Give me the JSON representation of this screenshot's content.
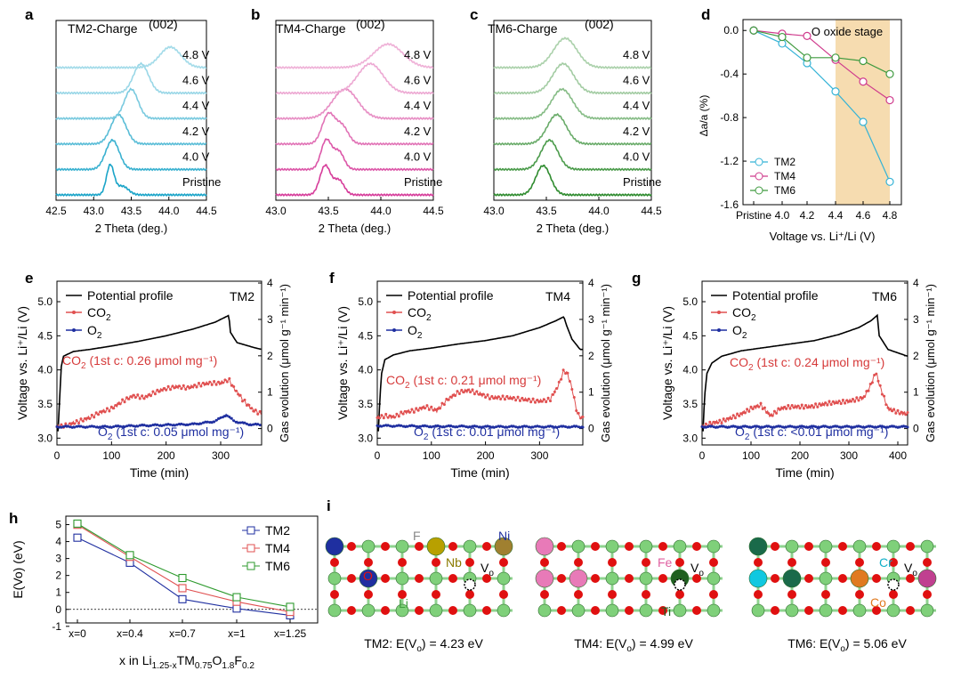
{
  "panel_letters": [
    "a",
    "b",
    "c",
    "d",
    "e",
    "f",
    "g",
    "h",
    "i"
  ],
  "chart_data": [
    {
      "id": "a",
      "type": "line",
      "title": "TM2-Charge",
      "peak_label": "(002)",
      "xlabel": "2 Theta (deg.)",
      "xlim": [
        42.5,
        44.5
      ],
      "xticks": [
        "42.5",
        "43.0",
        "43.5",
        "44.0",
        "44.5"
      ],
      "color": "#1aa4c8",
      "traces": [
        {
          "label": "Pristine",
          "peaks": [
            [
              43.22,
              1.0,
              0.05
            ],
            [
              43.38,
              0.3,
              0.08
            ]
          ]
        },
        {
          "label": "4.0 V",
          "peaks": [
            [
              43.25,
              1.0,
              0.09
            ]
          ]
        },
        {
          "label": "4.2 V",
          "peaks": [
            [
              43.33,
              1.0,
              0.1
            ]
          ]
        },
        {
          "label": "4.4 V",
          "peaks": [
            [
              43.5,
              1.0,
              0.09
            ]
          ]
        },
        {
          "label": "4.6 V",
          "peaks": [
            [
              43.63,
              1.0,
              0.1
            ]
          ]
        },
        {
          "label": "4.8 V",
          "peaks": [
            [
              44.02,
              0.7,
              0.14
            ]
          ]
        }
      ]
    },
    {
      "id": "b",
      "type": "line",
      "title": "TM4-Charge",
      "peak_label": "(002)",
      "xlabel": "2 Theta (deg.)",
      "xlim": [
        43.0,
        44.5
      ],
      "xticks": [
        "43.0",
        "43.5",
        "44.0",
        "44.5"
      ],
      "color": "#d63c9a",
      "traces": [
        {
          "label": "Pristine",
          "peaks": [
            [
              43.47,
              1.0,
              0.05
            ],
            [
              43.6,
              0.5,
              0.05
            ]
          ]
        },
        {
          "label": "4.0 V",
          "peaks": [
            [
              43.48,
              1.0,
              0.05
            ],
            [
              43.6,
              0.6,
              0.05
            ]
          ]
        },
        {
          "label": "4.2 V",
          "peaks": [
            [
              43.5,
              1.0,
              0.06
            ],
            [
              43.63,
              0.6,
              0.06
            ]
          ]
        },
        {
          "label": "4.4 V",
          "peaks": [
            [
              43.66,
              1.0,
              0.12
            ]
          ]
        },
        {
          "label": "4.6 V",
          "peaks": [
            [
              43.9,
              1.0,
              0.12
            ]
          ]
        },
        {
          "label": "4.8 V",
          "peaks": [
            [
              44.07,
              0.8,
              0.14
            ]
          ]
        }
      ]
    },
    {
      "id": "c",
      "type": "line",
      "title": "TM6-Charge",
      "peak_label": "(002)",
      "xlabel": "2 Theta (deg.)",
      "xlim": [
        43.0,
        44.5
      ],
      "xticks": [
        "43.0",
        "43.5",
        "44.0",
        "44.5"
      ],
      "color": "#2e8b2e",
      "traces": [
        {
          "label": "Pristine",
          "peaks": [
            [
              43.47,
              1.0,
              0.07
            ]
          ]
        },
        {
          "label": "4.0 V",
          "peaks": [
            [
              43.53,
              1.0,
              0.08
            ]
          ]
        },
        {
          "label": "4.2 V",
          "peaks": [
            [
              43.6,
              1.0,
              0.09
            ]
          ]
        },
        {
          "label": "4.4 V",
          "peaks": [
            [
              43.65,
              1.0,
              0.1
            ]
          ]
        },
        {
          "label": "4.6 V",
          "peaks": [
            [
              43.66,
              1.0,
              0.1
            ]
          ]
        },
        {
          "label": "4.8 V",
          "peaks": [
            [
              43.68,
              1.0,
              0.11
            ]
          ]
        }
      ]
    },
    {
      "id": "d",
      "type": "line",
      "ylabel": "Δa/a (%)",
      "xlabel": "Voltage vs. Li⁺/Li (V)",
      "categories": [
        "Pristine",
        "4.0",
        "4.2",
        "4.4",
        "4.6",
        "4.8"
      ],
      "ylim": [
        -1.6,
        0.1
      ],
      "yticks": [
        "0.0",
        "-0.4",
        "-0.8",
        "-1.2",
        "-1.6"
      ],
      "shaded_region": {
        "from": "4.4",
        "to": "4.8",
        "label": "O oxide stage"
      },
      "legend_position": "bottom-left",
      "series": [
        {
          "name": "TM2",
          "color": "#35b3d6",
          "values": [
            0.0,
            -0.12,
            -0.3,
            -0.56,
            -0.84,
            -1.39
          ]
        },
        {
          "name": "TM4",
          "color": "#cf3a8c",
          "values": [
            0.0,
            -0.03,
            -0.05,
            -0.27,
            -0.47,
            -0.64
          ]
        },
        {
          "name": "TM6",
          "color": "#3f9a3f",
          "values": [
            0.0,
            -0.06,
            -0.25,
            -0.25,
            -0.28,
            -0.4
          ]
        }
      ]
    },
    {
      "id": "e",
      "type": "line",
      "tag": "TM2",
      "xlabel": "Time (min)",
      "ylabel": "Voltage vs. Li⁺/Li (V)",
      "y2label": "Gas evolution (μmol g⁻¹ min⁻¹)",
      "xlim": [
        0,
        375
      ],
      "xticks": [
        "0",
        "100",
        "200",
        "300"
      ],
      "ylim": [
        2.9,
        5.3
      ],
      "yticks": [
        "3.0",
        "3.5",
        "4.0",
        "4.5",
        "5.0"
      ],
      "y2lim": [
        -0.45,
        4.05
      ],
      "y2ticks": [
        "0",
        "1",
        "2",
        "3",
        "4"
      ],
      "legend": [
        "Potential profile",
        "CO2",
        "O2"
      ],
      "co2_note": "CO2 (1st c: 0.26 μmol mg⁻¹)",
      "o2_note": "O2 (1st c: 0.05 μmol mg⁻¹)",
      "potential": [
        [
          2,
          3.1
        ],
        [
          5,
          3.6
        ],
        [
          8,
          4.05
        ],
        [
          12,
          4.2
        ],
        [
          30,
          4.27
        ],
        [
          60,
          4.3
        ],
        [
          100,
          4.35
        ],
        [
          150,
          4.42
        ],
        [
          200,
          4.5
        ],
        [
          250,
          4.6
        ],
        [
          290,
          4.7
        ],
        [
          315,
          4.8
        ],
        [
          318,
          4.55
        ],
        [
          330,
          4.4
        ],
        [
          360,
          4.33
        ],
        [
          375,
          4.3
        ]
      ],
      "co2": [
        [
          0,
          0.05
        ],
        [
          20,
          0.1
        ],
        [
          40,
          0.2
        ],
        [
          60,
          0.3
        ],
        [
          80,
          0.45
        ],
        [
          100,
          0.55
        ],
        [
          120,
          0.75
        ],
        [
          140,
          0.9
        ],
        [
          160,
          0.85
        ],
        [
          180,
          1.0
        ],
        [
          200,
          1.1
        ],
        [
          220,
          1.15
        ],
        [
          240,
          1.12
        ],
        [
          260,
          1.2
        ],
        [
          280,
          1.25
        ],
        [
          300,
          1.25
        ],
        [
          315,
          1.35
        ],
        [
          325,
          1.1
        ],
        [
          340,
          0.8
        ],
        [
          360,
          0.5
        ],
        [
          375,
          0.4
        ]
      ],
      "o2": [
        [
          0,
          0.05
        ],
        [
          50,
          0.05
        ],
        [
          100,
          0.05
        ],
        [
          150,
          0.08
        ],
        [
          200,
          0.1
        ],
        [
          250,
          0.12
        ],
        [
          290,
          0.2
        ],
        [
          310,
          0.38
        ],
        [
          325,
          0.2
        ],
        [
          350,
          0.12
        ],
        [
          375,
          0.1
        ]
      ]
    },
    {
      "id": "f",
      "type": "line",
      "tag": "TM4",
      "xlabel": "Time (min)",
      "ylabel": "Voltage vs. Li⁺/Li (V)",
      "y2label": "Gas evolution (μmol g⁻¹ min⁻¹)",
      "xlim": [
        0,
        380
      ],
      "xticks": [
        "0",
        "100",
        "200",
        "300"
      ],
      "ylim": [
        2.9,
        5.3
      ],
      "yticks": [
        "3.0",
        "3.5",
        "4.0",
        "4.5",
        "5.0"
      ],
      "y2lim": [
        -0.45,
        4.05
      ],
      "y2ticks": [
        "0",
        "1",
        "2",
        "3",
        "4"
      ],
      "legend": [
        "Potential profile",
        "CO2",
        "O2"
      ],
      "co2_note": "CO2 (1st c: 0.21 μmol mg⁻¹)",
      "o2_note": "O2 (1st c: 0.01 μmol mg⁻¹)",
      "potential": [
        [
          2,
          3.1
        ],
        [
          5,
          3.6
        ],
        [
          8,
          3.95
        ],
        [
          14,
          4.15
        ],
        [
          30,
          4.22
        ],
        [
          60,
          4.28
        ],
        [
          100,
          4.32
        ],
        [
          150,
          4.38
        ],
        [
          200,
          4.43
        ],
        [
          250,
          4.5
        ],
        [
          300,
          4.62
        ],
        [
          330,
          4.72
        ],
        [
          345,
          4.78
        ],
        [
          350,
          4.65
        ],
        [
          360,
          4.45
        ],
        [
          375,
          4.3
        ]
      ],
      "co2": [
        [
          0,
          0.3
        ],
        [
          15,
          0.35
        ],
        [
          30,
          0.32
        ],
        [
          50,
          0.45
        ],
        [
          70,
          0.5
        ],
        [
          90,
          0.6
        ],
        [
          110,
          0.5
        ],
        [
          130,
          0.8
        ],
        [
          150,
          1.0
        ],
        [
          170,
          1.05
        ],
        [
          190,
          0.95
        ],
        [
          210,
          0.85
        ],
        [
          240,
          0.85
        ],
        [
          270,
          0.8
        ],
        [
          300,
          0.75
        ],
        [
          320,
          0.8
        ],
        [
          335,
          1.2
        ],
        [
          345,
          1.6
        ],
        [
          352,
          1.5
        ],
        [
          360,
          1.1
        ],
        [
          370,
          0.4
        ],
        [
          378,
          0.3
        ]
      ],
      "o2": [
        [
          0,
          0.08
        ],
        [
          50,
          0.07
        ],
        [
          100,
          0.06
        ],
        [
          150,
          0.06
        ],
        [
          200,
          0.05
        ],
        [
          250,
          0.05
        ],
        [
          300,
          0.05
        ],
        [
          350,
          0.05
        ],
        [
          378,
          0.05
        ]
      ]
    },
    {
      "id": "g",
      "type": "line",
      "tag": "TM6",
      "xlabel": "Time (min)",
      "ylabel": "Voltage vs. Li⁺/Li (V)",
      "y2label": "Gas evolution (μmol g⁻¹ min⁻¹)",
      "xlim": [
        0,
        420
      ],
      "xticks": [
        "0",
        "100",
        "200",
        "300",
        "400"
      ],
      "ylim": [
        2.9,
        5.3
      ],
      "yticks": [
        "3.0",
        "3.5",
        "4.0",
        "4.5",
        "5.0"
      ],
      "y2lim": [
        -0.45,
        4.05
      ],
      "y2ticks": [
        "0",
        "1",
        "2",
        "3",
        "4"
      ],
      "legend": [
        "Potential profile",
        "CO2",
        "O2"
      ],
      "co2_note": "CO2 (1st c: 0.24 μmol mg⁻¹)",
      "o2_note": "O2 (1st c: <0.01 μmol mg⁻¹)",
      "potential": [
        [
          2,
          3.1
        ],
        [
          5,
          3.6
        ],
        [
          10,
          3.95
        ],
        [
          20,
          4.1
        ],
        [
          40,
          4.2
        ],
        [
          80,
          4.28
        ],
        [
          130,
          4.33
        ],
        [
          180,
          4.38
        ],
        [
          230,
          4.43
        ],
        [
          280,
          4.52
        ],
        [
          320,
          4.62
        ],
        [
          345,
          4.72
        ],
        [
          358,
          4.8
        ],
        [
          362,
          4.5
        ],
        [
          380,
          4.3
        ],
        [
          420,
          4.2
        ]
      ],
      "co2": [
        [
          0,
          0.05
        ],
        [
          20,
          0.15
        ],
        [
          40,
          0.2
        ],
        [
          60,
          0.3
        ],
        [
          80,
          0.4
        ],
        [
          100,
          0.55
        ],
        [
          120,
          0.65
        ],
        [
          140,
          0.35
        ],
        [
          160,
          0.55
        ],
        [
          180,
          0.6
        ],
        [
          220,
          0.6
        ],
        [
          260,
          0.7
        ],
        [
          300,
          0.75
        ],
        [
          330,
          0.85
        ],
        [
          345,
          1.2
        ],
        [
          355,
          1.55
        ],
        [
          365,
          1.1
        ],
        [
          380,
          0.55
        ],
        [
          400,
          0.45
        ],
        [
          420,
          0.4
        ]
      ],
      "o2": [
        [
          0,
          0.05
        ],
        [
          100,
          0.05
        ],
        [
          200,
          0.05
        ],
        [
          300,
          0.05
        ],
        [
          420,
          0.05
        ]
      ]
    },
    {
      "id": "h",
      "type": "line",
      "ylabel": "E(Vo) (eV)",
      "xlabel": "x in Li1.25-xTM0.75O1.8F0.2",
      "categories": [
        "x=0",
        "x=0.4",
        "x=0.7",
        "x=1",
        "x=1.25"
      ],
      "ylim": [
        -0.8,
        5.5
      ],
      "yticks": [
        "5",
        "4",
        "3",
        "2",
        "1",
        "0",
        "-1"
      ],
      "legend_position": "top-right",
      "series": [
        {
          "name": "TM2",
          "color": "#1f2fa0",
          "values": [
            4.23,
            2.75,
            0.6,
            0.05,
            -0.35
          ]
        },
        {
          "name": "TM4",
          "color": "#e05050",
          "values": [
            4.99,
            3.1,
            1.25,
            0.45,
            -0.15
          ]
        },
        {
          "name": "TM6",
          "color": "#2e9a2e",
          "values": [
            5.06,
            3.2,
            1.85,
            0.72,
            0.15
          ]
        }
      ]
    }
  ],
  "structures": [
    {
      "caption": "TM2: E(Vo) = 4.23 eV",
      "labels": {
        "o": "O",
        "li": "Li",
        "f": "F",
        "nb": "Nb",
        "ni": "Ni",
        "vo": "Vo"
      }
    },
    {
      "caption": "TM4: E(Vo) = 4.99 eV",
      "labels": {
        "fe": "Fe",
        "vo": "Vo",
        "ti": "Ti"
      }
    },
    {
      "caption": "TM6: E(Vo) = 5.06 eV",
      "labels": {
        "cr": "Cr",
        "vo": "Vo",
        "co": "Co"
      }
    }
  ]
}
